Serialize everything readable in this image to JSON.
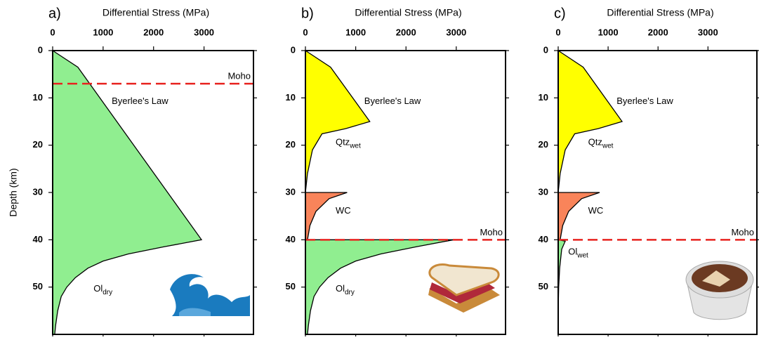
{
  "chart_data": [
    {
      "type": "area",
      "panel_label": "a)",
      "title": "Differential Stress (MPa)",
      "ylabel": "Depth (km)",
      "xlim": [
        0,
        3980
      ],
      "ylim": [
        0,
        60
      ],
      "xticks": [
        0,
        1000,
        2000,
        3000
      ],
      "yticks": [
        0,
        10,
        20,
        30,
        40,
        50
      ],
      "annotation": "Byerlee's Law",
      "moho": {
        "label": "Moho",
        "depth": 7
      },
      "series": [
        {
          "name": "Ol",
          "name_sub": "dry",
          "color": "#90ee90",
          "x": [
            0,
            500,
            2950,
            2200,
            1500,
            1000,
            700,
            450,
            280,
            170,
            100,
            60,
            40,
            0
          ],
          "y": [
            0,
            3.5,
            40,
            41.5,
            43,
            44.5,
            46,
            48,
            50,
            52,
            55,
            58,
            60,
            60
          ]
        }
      ]
    },
    {
      "type": "area",
      "panel_label": "b)",
      "title": "Differential Stress (MPa)",
      "xlim": [
        0,
        3980
      ],
      "ylim": [
        0,
        60
      ],
      "xticks": [
        0,
        1000,
        2000,
        3000
      ],
      "yticks": [
        0,
        10,
        20,
        30,
        40,
        50
      ],
      "annotation": "Byerlee's Law",
      "moho": {
        "label": "Moho",
        "depth": 40
      },
      "series": [
        {
          "name": "Qtz",
          "name_sub": "wet",
          "color": "#ffff00",
          "x": [
            0,
            500,
            1280,
            800,
            330,
            140,
            40,
            0
          ],
          "y": [
            0,
            3.5,
            15,
            16.5,
            17.6,
            21,
            26,
            30
          ]
        },
        {
          "name": "WC",
          "color": "#f9845a",
          "x": [
            0,
            830,
            470,
            210,
            90,
            40,
            0
          ],
          "y": [
            30,
            30,
            31.3,
            34,
            37,
            40,
            40
          ]
        },
        {
          "name": "Ol",
          "name_sub": "dry",
          "color": "#90ee90",
          "x": [
            0,
            2950,
            2200,
            1500,
            1000,
            700,
            450,
            280,
            170,
            100,
            60,
            40,
            0
          ],
          "y": [
            40,
            40,
            41.5,
            43,
            44.5,
            46,
            48,
            50,
            52,
            55,
            58,
            60,
            60
          ]
        }
      ]
    },
    {
      "type": "area",
      "panel_label": "c)",
      "title": "Differential Stress (MPa)",
      "xlim": [
        0,
        3980
      ],
      "ylim": [
        0,
        60
      ],
      "xticks": [
        0,
        1000,
        2000,
        3000
      ],
      "yticks": [
        0,
        10,
        20,
        30,
        40,
        50
      ],
      "annotation": "Byerlee's Law",
      "moho": {
        "label": "Moho",
        "depth": 40
      },
      "series": [
        {
          "name": "Qtz",
          "name_sub": "wet",
          "color": "#ffff00",
          "x": [
            0,
            500,
            1280,
            800,
            330,
            140,
            40,
            0
          ],
          "y": [
            0,
            3.5,
            15,
            16.5,
            17.6,
            21,
            26,
            30
          ]
        },
        {
          "name": "WC",
          "color": "#f9845a",
          "x": [
            0,
            830,
            470,
            210,
            90,
            40,
            0
          ],
          "y": [
            30,
            30,
            31.3,
            34,
            37,
            40,
            40
          ]
        },
        {
          "name": "Ol",
          "name_sub": "wet",
          "color": "#90ee90",
          "x": [
            0,
            140,
            70,
            30,
            10,
            0
          ],
          "y": [
            40,
            40.3,
            42,
            46,
            50,
            55
          ]
        }
      ]
    }
  ]
}
